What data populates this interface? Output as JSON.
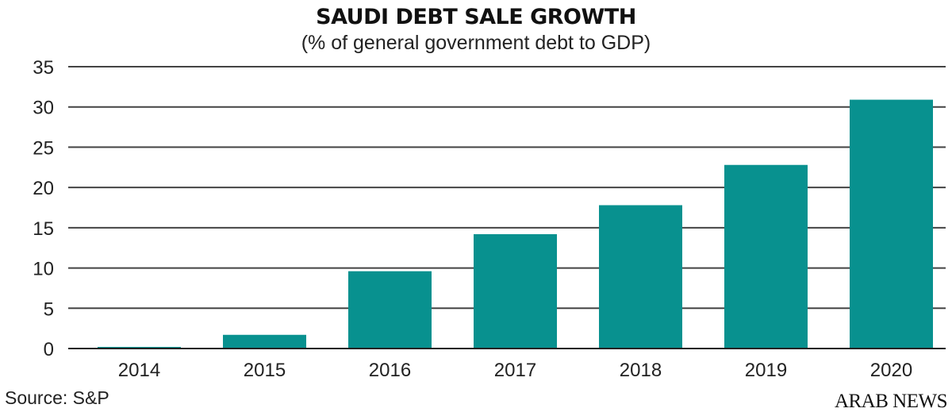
{
  "chart_data": {
    "type": "bar",
    "title": "SAUDI DEBT SALE GROWTH",
    "subtitle": "(% of general government debt to GDP)",
    "categories": [
      "2014",
      "2015",
      "2016",
      "2017",
      "2018",
      "2019",
      "2020"
    ],
    "values": [
      0.2,
      1.7,
      9.6,
      14.2,
      17.8,
      22.8,
      30.9
    ],
    "xlabel": "",
    "ylabel": "",
    "ylim": [
      0,
      35
    ],
    "yticks": [
      0,
      5,
      10,
      15,
      20,
      25,
      30,
      35
    ],
    "grid": true,
    "bar_color": "#08918f",
    "source": "Source: S&P"
  },
  "branding": {
    "logo": "ARAB NEWS"
  }
}
